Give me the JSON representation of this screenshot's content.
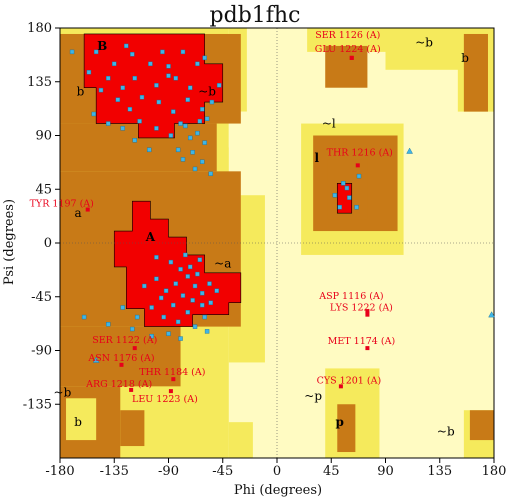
{
  "chart_data": {
    "type": "scatter",
    "title": "pdb1fhc",
    "xlabel": "Phi (degrees)",
    "ylabel": "Psi (degrees)",
    "xlim": [
      -180,
      180
    ],
    "ylim": [
      -180,
      180
    ],
    "x_ticks": [
      "-180",
      "-135",
      "-90",
      "-45",
      "0",
      "45",
      "90",
      "135",
      "180"
    ],
    "y_ticks": [
      "180",
      "135",
      "90",
      "45",
      "0",
      "-45",
      "-90",
      "-135"
    ],
    "region_labels": [
      {
        "text": "B",
        "phi": -145,
        "psi": 165,
        "big": true
      },
      {
        "text": "b",
        "phi": -163,
        "psi": 127,
        "big": false
      },
      {
        "text": "~b",
        "phi": -58,
        "psi": 127,
        "big": false
      },
      {
        "text": "~b",
        "phi": 122,
        "psi": 168,
        "big": false
      },
      {
        "text": "b",
        "phi": 156,
        "psi": 155,
        "big": false
      },
      {
        "text": "~l",
        "phi": 43,
        "psi": 100,
        "big": false
      },
      {
        "text": "l",
        "phi": 33,
        "psi": 71,
        "big": true
      },
      {
        "text": "a",
        "phi": -165,
        "psi": 25,
        "big": false
      },
      {
        "text": "A",
        "phi": -105,
        "psi": 5,
        "big": true
      },
      {
        "text": "~a",
        "phi": -45,
        "psi": -17,
        "big": false
      },
      {
        "text": "~b",
        "phi": -178,
        "psi": -125,
        "big": false
      },
      {
        "text": "b",
        "phi": -165,
        "psi": -150,
        "big": false
      },
      {
        "text": "~p",
        "phi": 30,
        "psi": -128,
        "big": false
      },
      {
        "text": "p",
        "phi": 52,
        "psi": -150,
        "big": true
      },
      {
        "text": "~b",
        "phi": 140,
        "psi": -158,
        "big": false
      }
    ],
    "labeled_residues": [
      {
        "label": "SER 1126 (A)",
        "phi": 62,
        "psi": 155
      },
      {
        "label": "GLU 1224 (A)",
        "phi": 62,
        "psi": 155
      },
      {
        "label": "TYR 1197 (A)",
        "phi": -157,
        "psi": 28
      },
      {
        "label": "THR 1216 (A)",
        "phi": 67,
        "psi": 65
      },
      {
        "label": "ASP 1116 (A)",
        "phi": 75,
        "psi": -57
      },
      {
        "label": "LYS 1222 (A)",
        "phi": 75,
        "psi": -60
      },
      {
        "label": "MET 1174 (A)",
        "phi": 75,
        "psi": -88
      },
      {
        "label": "SER 1122 (A)",
        "phi": -118,
        "psi": -88
      },
      {
        "label": "ASN 1176 (A)",
        "phi": -129,
        "psi": -102
      },
      {
        "label": "THR 1184 (A)",
        "phi": -86,
        "psi": -114
      },
      {
        "label": "ARG 1218 (A)",
        "phi": -121,
        "psi": -123
      },
      {
        "label": "LEU 1223 (A)",
        "phi": -88,
        "psi": -124
      },
      {
        "label": "CYS 1201 (A)",
        "phi": 53,
        "psi": -120
      }
    ],
    "glycine_points": [
      {
        "phi": 110,
        "psi": 77
      },
      {
        "phi": -150,
        "psi": -98
      },
      {
        "phi": 178,
        "psi": -60
      }
    ],
    "core_points": [
      [
        -150,
        160
      ],
      [
        -135,
        150
      ],
      [
        -120,
        158
      ],
      [
        -105,
        150
      ],
      [
        -90,
        148
      ],
      [
        -78,
        160
      ],
      [
        -66,
        150
      ],
      [
        -140,
        138
      ],
      [
        -128,
        130
      ],
      [
        -118,
        138
      ],
      [
        -100,
        132
      ],
      [
        -84,
        138
      ],
      [
        -72,
        130
      ],
      [
        -156,
        143
      ],
      [
        -146,
        128
      ],
      [
        -132,
        120
      ],
      [
        -122,
        112
      ],
      [
        -112,
        122
      ],
      [
        -98,
        118
      ],
      [
        -86,
        110
      ],
      [
        -74,
        120
      ],
      [
        -62,
        112
      ],
      [
        -152,
        108
      ],
      [
        -140,
        100
      ],
      [
        -128,
        96
      ],
      [
        -114,
        102
      ],
      [
        -100,
        96
      ],
      [
        -88,
        90
      ],
      [
        -76,
        98
      ],
      [
        -66,
        92
      ],
      [
        -58,
        104
      ],
      [
        -54,
        118
      ],
      [
        -48,
        132
      ],
      [
        -60,
        84
      ],
      [
        -70,
        76
      ],
      [
        -78,
        70
      ],
      [
        -62,
        68
      ],
      [
        -55,
        58
      ],
      [
        -68,
        62
      ],
      [
        -82,
        78
      ],
      [
        -106,
        78
      ],
      [
        -118,
        86
      ],
      [
        -90,
        140
      ],
      [
        -95,
        160
      ],
      [
        -60,
        155
      ],
      [
        -170,
        160
      ],
      [
        -125,
        165
      ],
      [
        -80,
        100
      ],
      [
        -64,
        102
      ],
      [
        -72,
        88
      ],
      [
        -88,
        -16
      ],
      [
        -80,
        -22
      ],
      [
        -74,
        -28
      ],
      [
        -68,
        -36
      ],
      [
        -62,
        -42
      ],
      [
        -56,
        -34
      ],
      [
        -66,
        -26
      ],
      [
        -84,
        -34
      ],
      [
        -78,
        -44
      ],
      [
        -70,
        -48
      ],
      [
        -62,
        -52
      ],
      [
        -92,
        -40
      ],
      [
        -100,
        -30
      ],
      [
        -96,
        -46
      ],
      [
        -86,
        -52
      ],
      [
        -74,
        -58
      ],
      [
        -60,
        -62
      ],
      [
        -110,
        -36
      ],
      [
        -104,
        -54
      ],
      [
        -94,
        -62
      ],
      [
        -82,
        -66
      ],
      [
        -68,
        -70
      ],
      [
        -55,
        -50
      ],
      [
        -50,
        -40
      ],
      [
        -116,
        -62
      ],
      [
        -128,
        -54
      ],
      [
        -72,
        -20
      ],
      [
        -90,
        -76
      ],
      [
        -58,
        -74
      ],
      [
        -76,
        -10
      ],
      [
        -64,
        -14
      ],
      [
        -100,
        -12
      ],
      [
        -120,
        -72
      ],
      [
        -140,
        -68
      ],
      [
        -160,
        -62
      ],
      [
        -80,
        -80
      ],
      [
        -104,
        -78
      ],
      [
        48,
        40
      ],
      [
        58,
        46
      ],
      [
        66,
        30
      ],
      [
        55,
        50
      ],
      [
        68,
        56
      ],
      [
        52,
        30
      ],
      [
        60,
        38
      ]
    ]
  }
}
